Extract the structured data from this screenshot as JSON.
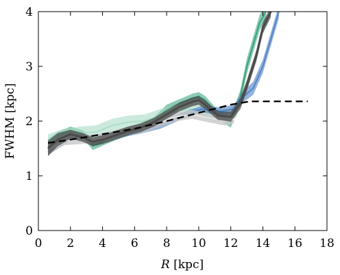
{
  "chart_data": {
    "type": "line",
    "xlabel_var": "R",
    "xlabel_unit": " [kpc]",
    "ylabel": "FWHM [kpc]",
    "xlim": [
      0,
      18
    ],
    "ylim": [
      0,
      4
    ],
    "x_ticks": [
      0,
      2,
      4,
      6,
      8,
      10,
      12,
      14,
      16,
      18
    ],
    "y_ticks": [
      0,
      1,
      2,
      3,
      4
    ],
    "grid": false,
    "legend": "none",
    "colors": {
      "green": "#2e9e74",
      "light_green": "#a8dcc6",
      "blue": "#4d7fc4",
      "gray": "#4a4a4a",
      "light_gray": "#c8c8c8",
      "model": "#000000"
    },
    "series": [
      {
        "style": "green-band",
        "x": [
          0.6,
          1.2,
          2.0,
          2.8,
          3.4,
          4.0,
          4.8,
          5.6,
          6.4,
          7.2,
          8.0,
          8.8,
          9.6,
          10.0,
          10.4,
          11.2,
          12.0,
          12.6,
          13.0,
          13.4,
          13.8,
          14.2
        ],
        "y": [
          1.55,
          1.7,
          1.82,
          1.75,
          1.55,
          1.62,
          1.72,
          1.8,
          1.9,
          2.0,
          2.22,
          2.32,
          2.42,
          2.45,
          2.38,
          2.12,
          1.98,
          2.45,
          3.0,
          3.4,
          3.8,
          4.0
        ],
        "spread": [
          0.12,
          0.1,
          0.08,
          0.08,
          0.08,
          0.07,
          0.07,
          0.07,
          0.07,
          0.07,
          0.08,
          0.08,
          0.08,
          0.08,
          0.08,
          0.08,
          0.1,
          0.12,
          0.14,
          0.14,
          0.14,
          0.14
        ]
      },
      {
        "style": "light-green-band",
        "x": [
          0.6,
          1.6,
          2.6,
          3.6,
          4.6,
          5.6,
          6.6,
          7.6,
          8.6,
          9.4,
          10.2,
          11.0,
          11.8,
          12.4
        ],
        "y": [
          1.62,
          1.74,
          1.78,
          1.8,
          1.92,
          1.98,
          2.0,
          2.1,
          2.18,
          2.22,
          2.2,
          2.12,
          2.1,
          2.2
        ],
        "spread": [
          0.14,
          0.12,
          0.12,
          0.12,
          0.12,
          0.12,
          0.12,
          0.12,
          0.12,
          0.12,
          0.12,
          0.12,
          0.12,
          0.12
        ]
      },
      {
        "style": "blue-band",
        "x": [
          0.6,
          2.0,
          3.4,
          4.8,
          6.2,
          7.6,
          9.0,
          10.2,
          11.4,
          12.2,
          12.8,
          13.4,
          14.0,
          14.6,
          15.0
        ],
        "y": [
          1.45,
          1.7,
          1.68,
          1.74,
          1.82,
          1.92,
          2.1,
          2.22,
          2.18,
          2.22,
          2.45,
          2.6,
          3.0,
          3.6,
          4.0
        ],
        "spread": [
          0.07,
          0.06,
          0.06,
          0.06,
          0.06,
          0.06,
          0.06,
          0.06,
          0.07,
          0.08,
          0.1,
          0.12,
          0.12,
          0.12,
          0.12
        ]
      },
      {
        "style": "light-gray-band",
        "x": [
          0.6,
          1.6,
          2.6,
          3.6,
          4.6,
          5.6,
          6.6,
          7.6,
          8.6,
          9.6,
          10.6,
          11.6,
          12.2
        ],
        "y": [
          1.48,
          1.64,
          1.66,
          1.68,
          1.74,
          1.82,
          1.88,
          1.98,
          2.08,
          2.12,
          2.06,
          2.0,
          2.04
        ],
        "spread": [
          0.1,
          0.08,
          0.08,
          0.08,
          0.08,
          0.08,
          0.08,
          0.08,
          0.08,
          0.08,
          0.08,
          0.08,
          0.08
        ]
      },
      {
        "style": "gray-band",
        "x": [
          0.6,
          1.2,
          2.0,
          2.8,
          3.4,
          4.0,
          4.8,
          5.6,
          6.4,
          7.2,
          8.0,
          8.8,
          9.6,
          10.0,
          10.4,
          11.2,
          12.0,
          12.6,
          13.0,
          13.6,
          14.0,
          14.5
        ],
        "y": [
          1.5,
          1.66,
          1.76,
          1.7,
          1.62,
          1.66,
          1.74,
          1.82,
          1.88,
          1.98,
          2.12,
          2.26,
          2.35,
          2.38,
          2.3,
          2.1,
          2.08,
          2.32,
          2.65,
          3.2,
          3.7,
          4.0
        ],
        "spread": [
          0.14,
          0.12,
          0.08,
          0.08,
          0.08,
          0.08,
          0.08,
          0.08,
          0.08,
          0.08,
          0.08,
          0.08,
          0.08,
          0.08,
          0.08,
          0.08,
          0.09,
          0.1,
          0.1,
          0.1,
          0.1,
          0.1
        ]
      },
      {
        "style": "model-dashed",
        "x": [
          0.6,
          2.0,
          4.0,
          6.0,
          8.0,
          10.0,
          12.0,
          13.2,
          14.0,
          16.8
        ],
        "y": [
          1.6,
          1.66,
          1.76,
          1.86,
          2.0,
          2.15,
          2.3,
          2.36,
          2.36,
          2.36
        ]
      }
    ]
  }
}
